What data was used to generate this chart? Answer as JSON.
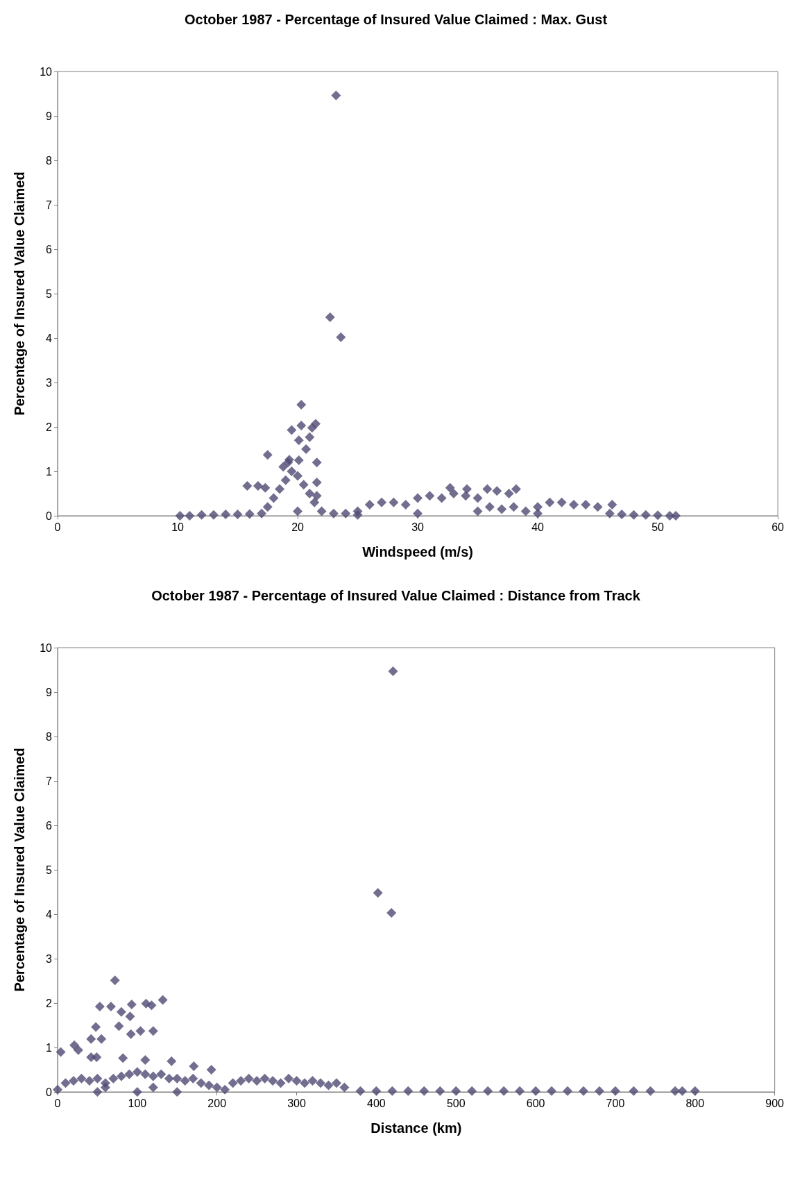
{
  "chart_data": [
    {
      "type": "scatter",
      "title": "October 1987 - Percentage of Insured Value Claimed : Max. Gust",
      "xlabel": "Windspeed (m/s)",
      "ylabel": "Percentage of Insured Value Claimed",
      "color": "#4f4a73",
      "marker": "diamond",
      "xlim": [
        0,
        60
      ],
      "xticks": [
        0,
        10,
        20,
        30,
        40,
        50,
        60
      ],
      "ylim": [
        0,
        10
      ],
      "yticks": [
        0,
        1,
        2,
        3,
        4,
        5,
        6,
        7,
        8,
        9,
        10
      ],
      "x": [
        10.2,
        11,
        12,
        13,
        14,
        15,
        16,
        17,
        17.5,
        18,
        18.5,
        19,
        19.5,
        18.8,
        19.2,
        20,
        20.5,
        21,
        21.4,
        22,
        23,
        24,
        25,
        26,
        27,
        28,
        29,
        30,
        31,
        32,
        33,
        34,
        35,
        36,
        37,
        38,
        39,
        40,
        41,
        42,
        43,
        44,
        45,
        46.2,
        46,
        47,
        48,
        49,
        50,
        51,
        51.5,
        20,
        30,
        40,
        35,
        25,
        23.2,
        22.7,
        23.6,
        20.3,
        19.5,
        20.3,
        21.5,
        21.2,
        21,
        20.7,
        20.1,
        17.5,
        21.6,
        20.1,
        19.3,
        15.8,
        16.7,
        17.3,
        21.6,
        21.6,
        32.7,
        34.1,
        35.8,
        36.6,
        38.2,
        37.6
      ],
      "values": [
        0,
        0,
        0.02,
        0.02,
        0.03,
        0.03,
        0.04,
        0.05,
        0.2,
        0.4,
        0.6,
        0.8,
        1.0,
        1.1,
        1.2,
        0.9,
        0.7,
        0.5,
        0.3,
        0.1,
        0.05,
        0.05,
        0.1,
        0.25,
        0.3,
        0.3,
        0.25,
        0.4,
        0.45,
        0.4,
        0.5,
        0.45,
        0.4,
        0.2,
        0.15,
        0.2,
        0.1,
        0.2,
        0.3,
        0.3,
        0.25,
        0.25,
        0.2,
        0.25,
        0.05,
        0.03,
        0.02,
        0.02,
        0.01,
        0,
        0,
        0.1,
        0.05,
        0.05,
        0.1,
        0.02,
        9.46,
        4.47,
        4.02,
        2.5,
        1.93,
        2.03,
        2.07,
        1.98,
        1.77,
        1.5,
        1.7,
        1.37,
        1.2,
        1.25,
        1.26,
        0.67,
        0.67,
        0.63,
        0.75,
        0.45,
        0.63,
        0.6,
        0.6,
        0.56,
        0.6,
        0.5
      ]
    },
    {
      "type": "scatter",
      "title": "October 1987 - Percentage of Insured Value Claimed : Distance from Track",
      "xlabel": "Distance (km)",
      "ylabel": "Percentage of Insured Value Claimed",
      "color": "#4f4a73",
      "marker": "diamond",
      "xlim": [
        0,
        900
      ],
      "xticks": [
        0,
        100,
        200,
        300,
        400,
        500,
        600,
        700,
        800,
        900
      ],
      "ylim": [
        0,
        10
      ],
      "yticks": [
        0,
        1,
        2,
        3,
        4,
        5,
        6,
        7,
        8,
        9,
        10
      ],
      "x": [
        0,
        10,
        20,
        30,
        40,
        50,
        60,
        70,
        80,
        90,
        100,
        110,
        120,
        130,
        140,
        150,
        160,
        170,
        180,
        190,
        200,
        210,
        220,
        230,
        240,
        250,
        260,
        270,
        280,
        290,
        300,
        310,
        320,
        330,
        340,
        350,
        360,
        380,
        400,
        420,
        440,
        460,
        480,
        500,
        520,
        540,
        560,
        580,
        600,
        620,
        640,
        660,
        680,
        700,
        723,
        744,
        775,
        784,
        800,
        50,
        100,
        150,
        60,
        120,
        421,
        402,
        419,
        72,
        53,
        67,
        80,
        93,
        111,
        118,
        132,
        91,
        48,
        120,
        77,
        42,
        55,
        92,
        104,
        4,
        21,
        26,
        49,
        42,
        82,
        110,
        143,
        171,
        193
      ],
      "values": [
        0.05,
        0.2,
        0.25,
        0.3,
        0.25,
        0.3,
        0.2,
        0.3,
        0.35,
        0.4,
        0.45,
        0.4,
        0.35,
        0.4,
        0.3,
        0.3,
        0.25,
        0.3,
        0.2,
        0.15,
        0.1,
        0.05,
        0.2,
        0.25,
        0.3,
        0.25,
        0.3,
        0.25,
        0.2,
        0.3,
        0.25,
        0.2,
        0.25,
        0.2,
        0.15,
        0.2,
        0.1,
        0.02,
        0.02,
        0.02,
        0.02,
        0.02,
        0.02,
        0.02,
        0.02,
        0.02,
        0.02,
        0.02,
        0.02,
        0.02,
        0.02,
        0.02,
        0.02,
        0.02,
        0.02,
        0.02,
        0.02,
        0.02,
        0.02,
        0,
        0,
        0,
        0.1,
        0.1,
        9.47,
        4.48,
        4.03,
        2.51,
        1.92,
        1.92,
        1.8,
        1.97,
        1.99,
        1.95,
        2.07,
        1.7,
        1.46,
        1.37,
        1.48,
        1.19,
        1.19,
        1.3,
        1.37,
        0.9,
        1.05,
        0.94,
        0.78,
        0.78,
        0.76,
        0.72,
        0.69,
        0.58,
        0.5
      ]
    }
  ]
}
